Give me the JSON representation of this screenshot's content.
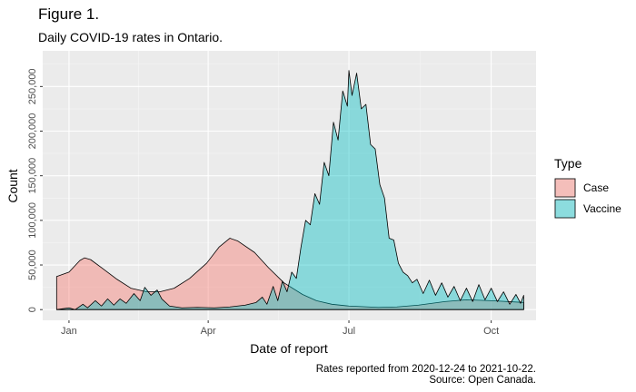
{
  "header": {
    "title": "Figure 1.",
    "subtitle": "Daily COVID-19 rates in Ontario."
  },
  "caption": {
    "line1": "Rates reported from 2020-12-24 to 2021-10-22.",
    "line2": "Source: Open Canada."
  },
  "chart_data": {
    "type": "area",
    "xlabel": "Date of report",
    "ylabel": "Count",
    "x_domain": [
      "2020-12-15",
      "2021-10-30"
    ],
    "ylim": [
      -12000,
      290000
    ],
    "x_ticks": [
      {
        "date": "2021-01-01",
        "label": "Jan"
      },
      {
        "date": "2021-04-01",
        "label": "Apr"
      },
      {
        "date": "2021-07-01",
        "label": "Jul"
      },
      {
        "date": "2021-10-01",
        "label": "Oct"
      }
    ],
    "y_ticks": [
      0,
      50000,
      100000,
      150000,
      200000,
      250000
    ],
    "y_tick_labels": [
      "0",
      "50,000",
      "100,000",
      "150,000",
      "200,000",
      "250,000"
    ],
    "grid": true,
    "legend": {
      "title": "Type",
      "position": "right"
    },
    "series": [
      {
        "name": "Case",
        "color": "#F8766D",
        "points": [
          [
            "2020-12-24",
            37000
          ],
          [
            "2021-01-01",
            42000
          ],
          [
            "2021-01-08",
            55000
          ],
          [
            "2021-01-11",
            58000
          ],
          [
            "2021-01-15",
            56000
          ],
          [
            "2021-01-22",
            47000
          ],
          [
            "2021-02-01",
            34000
          ],
          [
            "2021-02-10",
            24000
          ],
          [
            "2021-02-20",
            20000
          ],
          [
            "2021-03-01",
            20000
          ],
          [
            "2021-03-10",
            24000
          ],
          [
            "2021-03-20",
            35000
          ],
          [
            "2021-03-31",
            52000
          ],
          [
            "2021-04-08",
            70000
          ],
          [
            "2021-04-15",
            80000
          ],
          [
            "2021-04-20",
            77000
          ],
          [
            "2021-05-01",
            64000
          ],
          [
            "2021-05-10",
            47000
          ],
          [
            "2021-05-20",
            30000
          ],
          [
            "2021-06-01",
            17000
          ],
          [
            "2021-06-10",
            10000
          ],
          [
            "2021-06-20",
            6000
          ],
          [
            "2021-07-01",
            4000
          ],
          [
            "2021-07-20",
            2500
          ],
          [
            "2021-08-01",
            3000
          ],
          [
            "2021-08-15",
            5000
          ],
          [
            "2021-09-01",
            9000
          ],
          [
            "2021-09-15",
            11000
          ],
          [
            "2021-10-01",
            10000
          ],
          [
            "2021-10-22",
            8000
          ]
        ]
      },
      {
        "name": "Vaccine",
        "color": "#00BFC4",
        "points": [
          [
            "2020-12-24",
            0
          ],
          [
            "2021-01-01",
            2000
          ],
          [
            "2021-01-05",
            0
          ],
          [
            "2021-01-10",
            6000
          ],
          [
            "2021-01-13",
            2000
          ],
          [
            "2021-01-18",
            10000
          ],
          [
            "2021-01-22",
            4000
          ],
          [
            "2021-01-26",
            12000
          ],
          [
            "2021-01-30",
            5000
          ],
          [
            "2021-02-03",
            12000
          ],
          [
            "2021-02-07",
            7000
          ],
          [
            "2021-02-12",
            18000
          ],
          [
            "2021-02-16",
            10000
          ],
          [
            "2021-02-19",
            25000
          ],
          [
            "2021-02-23",
            16000
          ],
          [
            "2021-02-27",
            22000
          ],
          [
            "2021-03-02",
            12000
          ],
          [
            "2021-03-07",
            4000
          ],
          [
            "2021-03-15",
            2000
          ],
          [
            "2021-03-25",
            2500
          ],
          [
            "2021-04-05",
            2000
          ],
          [
            "2021-04-15",
            3000
          ],
          [
            "2021-04-25",
            5000
          ],
          [
            "2021-05-02",
            8000
          ],
          [
            "2021-05-06",
            14000
          ],
          [
            "2021-05-09",
            6000
          ],
          [
            "2021-05-13",
            26000
          ],
          [
            "2021-05-16",
            10000
          ],
          [
            "2021-05-19",
            32000
          ],
          [
            "2021-05-22",
            20000
          ],
          [
            "2021-05-25",
            42000
          ],
          [
            "2021-05-28",
            35000
          ],
          [
            "2021-05-31",
            70000
          ],
          [
            "2021-06-03",
            100000
          ],
          [
            "2021-06-06",
            95000
          ],
          [
            "2021-06-09",
            130000
          ],
          [
            "2021-06-12",
            118000
          ],
          [
            "2021-06-15",
            165000
          ],
          [
            "2021-06-18",
            150000
          ],
          [
            "2021-06-21",
            210000
          ],
          [
            "2021-06-24",
            190000
          ],
          [
            "2021-06-27",
            245000
          ],
          [
            "2021-06-30",
            228000
          ],
          [
            "2021-07-01",
            268000
          ],
          [
            "2021-07-03",
            240000
          ],
          [
            "2021-07-06",
            265000
          ],
          [
            "2021-07-09",
            225000
          ],
          [
            "2021-07-12",
            230000
          ],
          [
            "2021-07-15",
            185000
          ],
          [
            "2021-07-18",
            180000
          ],
          [
            "2021-07-21",
            140000
          ],
          [
            "2021-07-24",
            125000
          ],
          [
            "2021-07-27",
            80000
          ],
          [
            "2021-07-30",
            78000
          ],
          [
            "2021-08-02",
            52000
          ],
          [
            "2021-08-05",
            42000
          ],
          [
            "2021-08-08",
            38000
          ],
          [
            "2021-08-11",
            30000
          ],
          [
            "2021-08-14",
            34000
          ],
          [
            "2021-08-18",
            18000
          ],
          [
            "2021-08-22",
            33000
          ],
          [
            "2021-08-26",
            16000
          ],
          [
            "2021-08-30",
            30000
          ],
          [
            "2021-09-03",
            14000
          ],
          [
            "2021-09-07",
            26000
          ],
          [
            "2021-09-11",
            10000
          ],
          [
            "2021-09-15",
            24000
          ],
          [
            "2021-09-19",
            9000
          ],
          [
            "2021-09-23",
            28000
          ],
          [
            "2021-09-27",
            11000
          ],
          [
            "2021-10-01",
            24000
          ],
          [
            "2021-10-05",
            9000
          ],
          [
            "2021-10-09",
            20000
          ],
          [
            "2021-10-13",
            6000
          ],
          [
            "2021-10-17",
            17000
          ],
          [
            "2021-10-20",
            7000
          ],
          [
            "2021-10-22",
            16000
          ]
        ]
      }
    ]
  }
}
